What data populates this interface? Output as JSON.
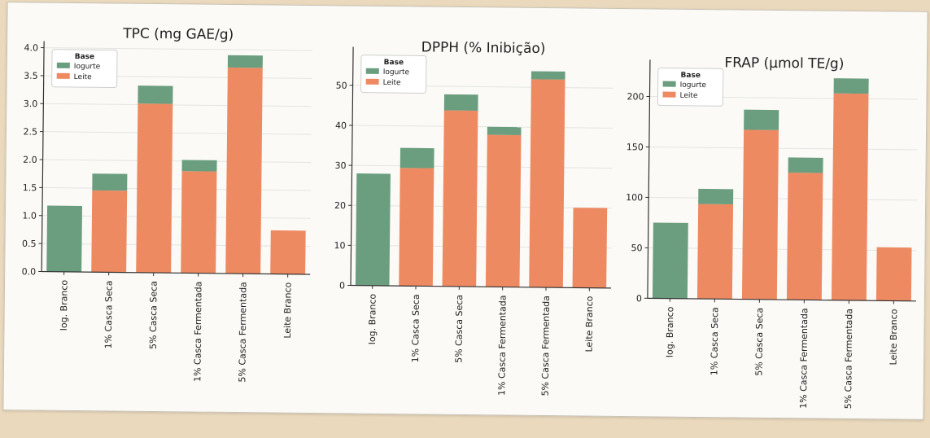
{
  "chart_data": [
    {
      "type": "bar",
      "stacked": true,
      "title": "TPC (mg GAE/g)",
      "categories": [
        "Iog. Branco",
        "1% Casca Seca",
        "5% Casca Seca",
        "1% Casca Fermentada",
        "5% Casca Fermentada",
        "Leite Branco"
      ],
      "ylim": [
        0,
        4.0
      ],
      "yticks": [
        "0.0",
        "0.5",
        "1.0",
        "1.5",
        "2.0",
        "2.5",
        "3.0",
        "3.5",
        "4.0"
      ],
      "series": [
        {
          "name": "Iogurte",
          "color": "#6a9e7f",
          "values": [
            1.18,
            0.3,
            0.32,
            0.2,
            0.22,
            0
          ]
        },
        {
          "name": "Leite",
          "color": "#ee8a62",
          "values": [
            0,
            1.46,
            3.02,
            1.82,
            3.68,
            0.78
          ]
        }
      ],
      "legend": {
        "title": "Base",
        "position": "top-left"
      },
      "grid": true
    },
    {
      "type": "bar",
      "stacked": true,
      "title": "DPPH (% Inibição)",
      "categories": [
        "Iog. Branco",
        "1% Casca Seca",
        "5% Casca Seca",
        "1% Casca Fermentada",
        "5% Casca Fermentada",
        "Leite Branco"
      ],
      "ylim": [
        0,
        58
      ],
      "yticks": [
        "0",
        "10",
        "20",
        "30",
        "40",
        "50"
      ],
      "series": [
        {
          "name": "Iogurte",
          "color": "#6a9e7f",
          "values": [
            28,
            5,
            4,
            2,
            2,
            0
          ]
        },
        {
          "name": "Leite",
          "color": "#ee8a62",
          "values": [
            0,
            29.5,
            44,
            38,
            52,
            20
          ]
        }
      ],
      "legend": {
        "title": "Base",
        "position": "top-left"
      },
      "grid": true
    },
    {
      "type": "bar",
      "stacked": true,
      "title": "FRAP (µmol TE/g)",
      "categories": [
        "Iog. Branco",
        "1% Casca Seca",
        "5% Casca Seca",
        "1% Casca Fermentada",
        "5% Casca Fermentada",
        "Leite Branco"
      ],
      "ylim": [
        0,
        230
      ],
      "yticks": [
        "0",
        "50",
        "100",
        "150",
        "200"
      ],
      "series": [
        {
          "name": "Iogurte",
          "color": "#6a9e7f",
          "values": [
            75,
            15,
            20,
            15,
            15,
            0
          ]
        },
        {
          "name": "Leite",
          "color": "#ee8a62",
          "values": [
            0,
            94,
            168,
            126,
            205,
            53
          ]
        }
      ],
      "legend": {
        "title": "Base",
        "position": "top-left"
      },
      "grid": true
    }
  ]
}
